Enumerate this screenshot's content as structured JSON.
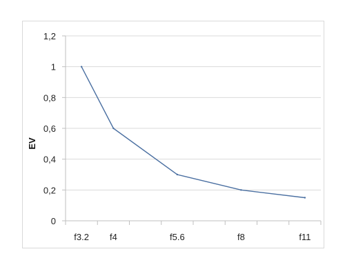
{
  "chart_data": {
    "type": "line",
    "categories": [
      "f3.2",
      "f4",
      "f5.6",
      "f8",
      "f11"
    ],
    "x_tick_labels": [
      "f3.2",
      "f4",
      "",
      "f5.6",
      "",
      "f8",
      "",
      "f11"
    ],
    "x_category_slots": [
      0,
      1,
      3,
      5,
      7
    ],
    "series": [
      {
        "values": [
          1.0,
          0.6,
          0.3,
          0.2,
          0.15
        ]
      }
    ],
    "y_ticks": [
      "0",
      "0,2",
      "0,4",
      "0,6",
      "0,8",
      "1",
      "1,2"
    ],
    "ylim": [
      0,
      1.2
    ],
    "ylabel": "EV",
    "xlabel": "",
    "title": "",
    "grid": "horizontal",
    "line_color": "#4a6fa1",
    "grid_color": "#d9d9d9",
    "axis_color": "#bfbfbf"
  }
}
